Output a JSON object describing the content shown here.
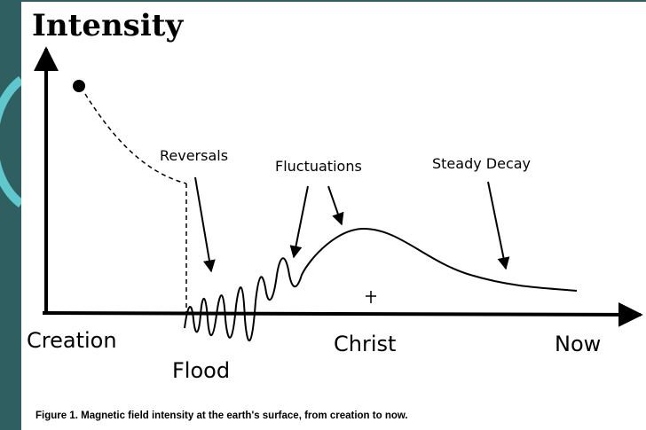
{
  "title": "Intensity",
  "annotations": {
    "reversals": "Reversals",
    "fluctuations": "Fluctuations",
    "steady_decay": "Steady Decay"
  },
  "x_labels": {
    "creation": "Creation",
    "flood": "Flood",
    "christ": "Christ",
    "now": "Now"
  },
  "caption": "Figure 1. Magnetic field intensity at the earth's surface, from creation to now."
}
